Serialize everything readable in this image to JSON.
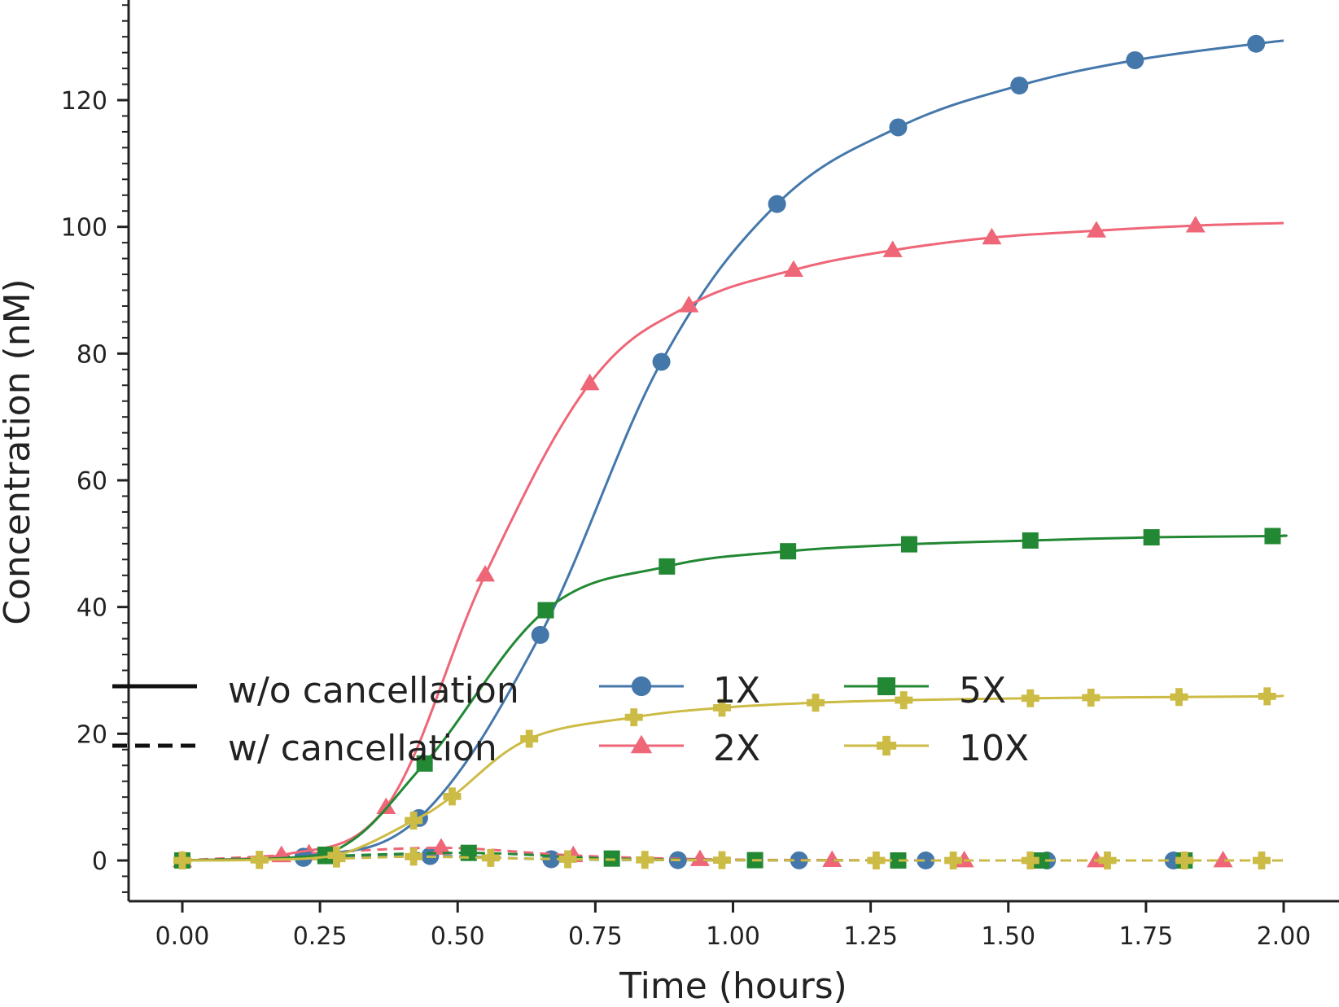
{
  "chart_data": {
    "type": "line",
    "xlabel": "Time (hours)",
    "ylabel": "Concentration (nM)",
    "xlim": [
      -0.1,
      2.0
    ],
    "ylim": [
      -6,
      135
    ],
    "x_ticks": [
      "0.00",
      "0.25",
      "0.50",
      "0.75",
      "1.00",
      "1.25",
      "1.50",
      "1.75",
      "2.00"
    ],
    "y_ticks": [
      "0",
      "20",
      "40",
      "60",
      "80",
      "100",
      "120"
    ],
    "y_minor_step": 2.5,
    "grid": false,
    "legend_placement": "lower-left",
    "legend": {
      "styles": [
        {
          "label": "w/o cancellation",
          "dash": "solid"
        },
        {
          "label": "w/ cancellation",
          "dash": "dashed"
        }
      ],
      "series_labels": [
        "1X",
        "2X",
        "5X",
        "10X"
      ]
    },
    "series": [
      {
        "name": "1X",
        "color": "#4477aa",
        "marker": "circle",
        "style": "solid",
        "x": [
          0.0,
          0.22,
          0.43,
          0.65,
          0.87,
          1.08,
          1.3,
          1.52,
          1.73,
          1.95,
          2.0
        ],
        "y": [
          0,
          0.6,
          6.7,
          35.6,
          78.7,
          103.6,
          115.7,
          122.3,
          126.3,
          128.9,
          129.4
        ]
      },
      {
        "name": "2X",
        "color": "#ee6677",
        "marker": "triangle",
        "style": "solid",
        "x": [
          0.0,
          0.18,
          0.37,
          0.55,
          0.74,
          0.92,
          1.11,
          1.29,
          1.47,
          1.66,
          1.84,
          2.0
        ],
        "y": [
          0,
          0.8,
          8.4,
          45.1,
          75.3,
          87.6,
          93.2,
          96.3,
          98.3,
          99.4,
          100.2,
          100.6
        ]
      },
      {
        "name": "5X",
        "color": "#228833",
        "marker": "square",
        "style": "solid",
        "x": [
          0.0,
          0.26,
          0.44,
          0.66,
          0.88,
          1.1,
          1.32,
          1.54,
          1.76,
          1.98,
          2.0
        ],
        "y": [
          0,
          0.9,
          15.3,
          39.5,
          46.4,
          48.8,
          49.9,
          50.5,
          51.0,
          51.2,
          51.3
        ]
      },
      {
        "name": "10X",
        "color": "#ccbb44",
        "marker": "plus",
        "style": "solid",
        "x": [
          0.0,
          0.14,
          0.28,
          0.42,
          0.49,
          0.63,
          0.82,
          0.98,
          1.15,
          1.31,
          1.54,
          1.65,
          1.81,
          1.97,
          2.0
        ],
        "y": [
          0,
          0.1,
          0.8,
          6.3,
          10.1,
          19.2,
          22.6,
          24.1,
          24.9,
          25.3,
          25.6,
          25.7,
          25.8,
          25.9,
          26.0
        ]
      },
      {
        "name": "1X",
        "color": "#4477aa",
        "marker": "circle",
        "style": "dashed",
        "x": [
          0.0,
          0.22,
          0.45,
          0.67,
          0.9,
          1.12,
          1.35,
          1.57,
          1.8,
          2.0
        ],
        "y": [
          0,
          0.4,
          0.7,
          0.2,
          0.05,
          0.02,
          0.0,
          0.0,
          0.0,
          0.0
        ]
      },
      {
        "name": "2X",
        "color": "#ee6677",
        "marker": "triangle",
        "style": "dashed",
        "x": [
          0.0,
          0.18,
          0.23,
          0.47,
          0.71,
          0.94,
          1.18,
          1.42,
          1.66,
          1.89,
          2.0
        ],
        "y": [
          0,
          0.8,
          1.1,
          2.0,
          0.8,
          0.2,
          0.05,
          0.0,
          0.0,
          0.0,
          0.0
        ]
      },
      {
        "name": "5X",
        "color": "#228833",
        "marker": "square",
        "style": "dashed",
        "x": [
          0.0,
          0.26,
          0.52,
          0.78,
          1.04,
          1.3,
          1.56,
          1.82,
          2.0
        ],
        "y": [
          0,
          0.7,
          1.2,
          0.3,
          0.05,
          0.0,
          0.0,
          0.0,
          0.0
        ]
      },
      {
        "name": "10X",
        "color": "#ccbb44",
        "marker": "plus",
        "style": "dashed",
        "x": [
          0.0,
          0.14,
          0.28,
          0.42,
          0.56,
          0.7,
          0.84,
          0.98,
          1.26,
          1.4,
          1.54,
          1.68,
          1.82,
          1.96,
          2.0
        ],
        "y": [
          0,
          0.1,
          0.3,
          0.6,
          0.4,
          0.2,
          0.1,
          0.05,
          0.0,
          0.0,
          0.0,
          0.0,
          0.0,
          0.0,
          0.0
        ]
      }
    ]
  }
}
